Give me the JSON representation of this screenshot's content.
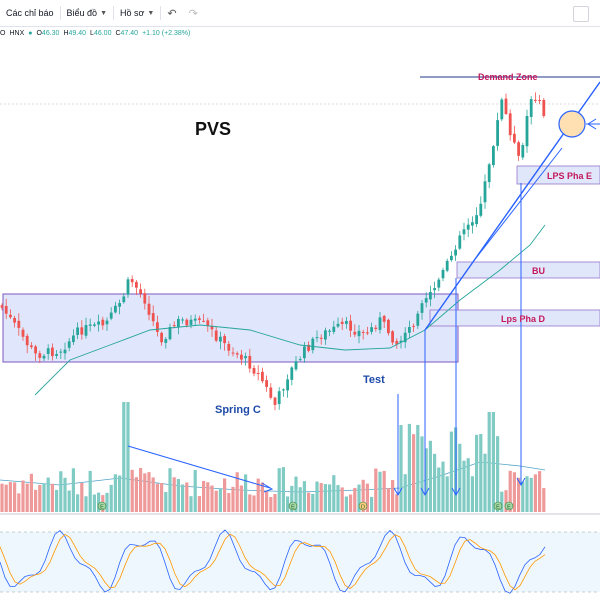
{
  "toolbar": {
    "items": [
      {
        "label": "Các chỉ báo",
        "dropdown": false
      },
      {
        "label": "Biểu đồ",
        "dropdown": true
      },
      {
        "label": "Hồ sơ",
        "dropdown": true
      }
    ],
    "undo_icon": "undo-icon",
    "redo_icon": "redo-icon"
  },
  "header": {
    "symbol_prefix": "O",
    "exchange": "HNX",
    "open_label": "O",
    "open": "46.30",
    "high_label": "H",
    "high": "49.40",
    "low_label": "L",
    "low": "46.00",
    "close_label": "C",
    "close": "47.40",
    "change": "+1.10 (+2.38%)"
  },
  "chart_data": {
    "type": "candlestick-annotated",
    "title": "PVS",
    "colors": {
      "up": "#26a69a",
      "down": "#ef5350",
      "zone_fill": "#d6ddf9",
      "zone_stroke": "#7e57c2",
      "annotation_blue": "#2962ff",
      "label_red": "#c2185b",
      "label_blue": "#1e4ba8"
    },
    "annotations": [
      {
        "id": "spring",
        "text": "Spring C",
        "color": "blue"
      },
      {
        "id": "test",
        "text": "Test",
        "color": "blue"
      },
      {
        "id": "demand",
        "text": "Demand Zone",
        "color": "red"
      },
      {
        "id": "lps-e",
        "text": "LPS Pha E",
        "color": "red"
      },
      {
        "id": "bu",
        "text": "BU",
        "color": "red"
      },
      {
        "id": "lps-d",
        "text": "Lps Pha D",
        "color": "red"
      }
    ],
    "event_markers": [
      "E",
      "E",
      "D",
      "E",
      "E"
    ],
    "panels": [
      "price",
      "volume",
      "stochastic"
    ]
  }
}
